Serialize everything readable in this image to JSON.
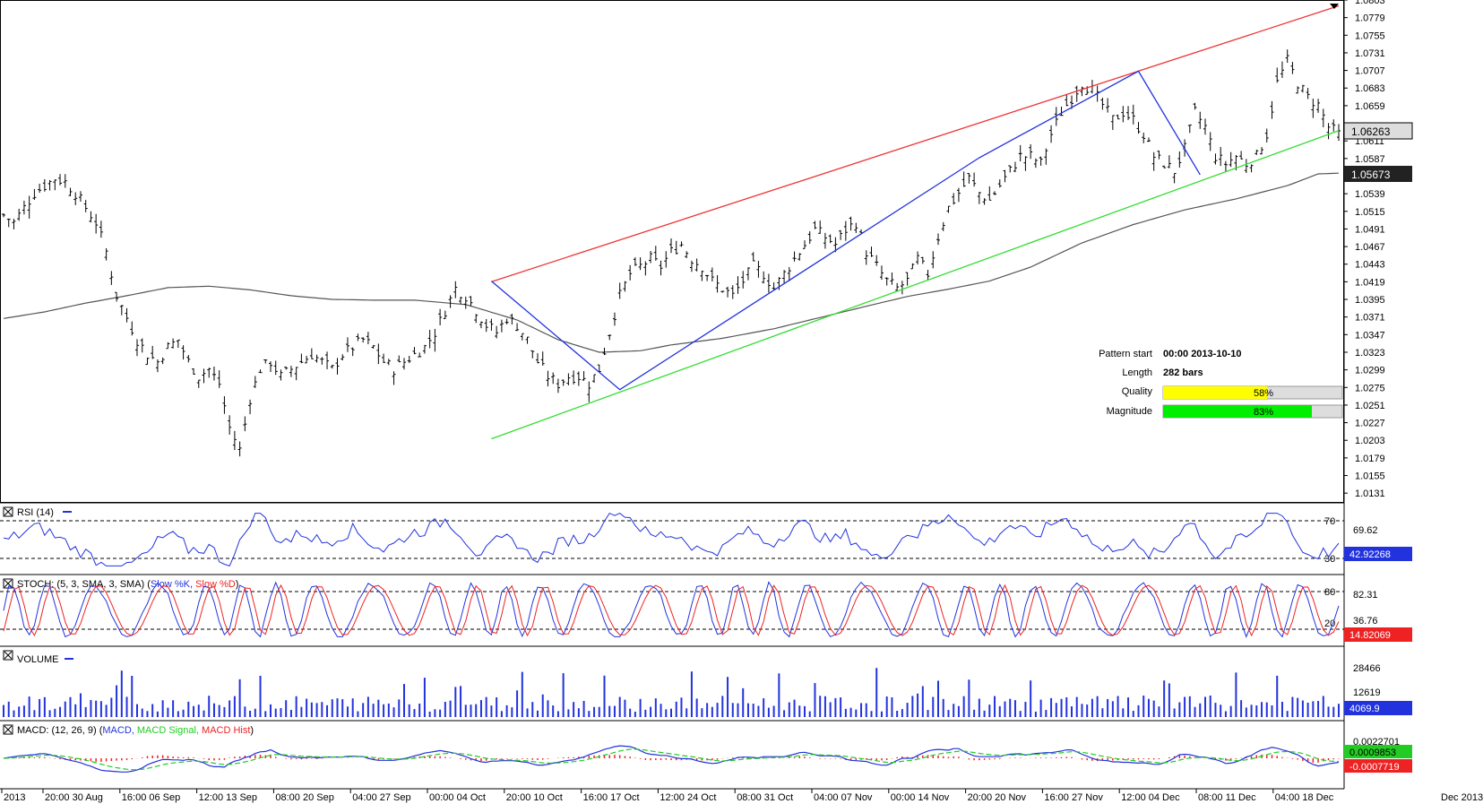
{
  "chart_data": {
    "type": "candlestick",
    "price_axis": {
      "ticks": [
        "1.0803",
        "1.0779",
        "1.0755",
        "1.0731",
        "1.0707",
        "1.0683",
        "1.0659",
        "1.0611",
        "1.0587",
        "1.0539",
        "1.0515",
        "1.0491",
        "1.0467",
        "1.0443",
        "1.0419",
        "1.0395",
        "1.0371",
        "1.0347",
        "1.0323",
        "1.0299",
        "1.0275",
        "1.0251",
        "1.0227",
        "1.0203",
        "1.0179",
        "1.0155",
        "1.0131"
      ],
      "ymin": 1.0119,
      "ymax": 1.0803,
      "current_price": "1.06263",
      "ma_price": "1.05673"
    },
    "time_axis": {
      "labels": [
        "2013",
        "20:00 30 Aug",
        "16:00 06 Sep",
        "12:00 13 Sep",
        "08:00 20 Sep",
        "04:00 27 Sep",
        "00:00 04 Oct",
        "20:00 10 Oct",
        "16:00 17 Oct",
        "12:00 24 Oct",
        "08:00 31 Oct",
        "04:00 07 Nov",
        "00:00 14 Nov",
        "20:00 20 Nov",
        "16:00 27 Nov",
        "12:00 04 Dec",
        "08:00 11 Dec",
        "04:00 18 Dec"
      ],
      "right_label": "Dec 2013"
    },
    "price_path": [
      [
        0,
        1.051
      ],
      [
        2,
        1.05
      ],
      [
        4,
        1.052
      ],
      [
        6,
        1.054
      ],
      [
        8,
        1.055
      ],
      [
        10,
        1.056
      ],
      [
        12,
        1.0555
      ],
      [
        14,
        1.054
      ],
      [
        16,
        1.052
      ],
      [
        18,
        1.05
      ],
      [
        20,
        1.046
      ],
      [
        22,
        1.04
      ],
      [
        24,
        1.037
      ],
      [
        26,
        1.034
      ],
      [
        28,
        1.032
      ],
      [
        30,
        1.031
      ],
      [
        32,
        1.033
      ],
      [
        34,
        1.034
      ],
      [
        36,
        1.031
      ],
      [
        38,
        1.029
      ],
      [
        40,
        1.03
      ],
      [
        42,
        1.028
      ],
      [
        44,
        1.022
      ],
      [
        46,
        1.019
      ],
      [
        48,
        1.026
      ],
      [
        50,
        1.03
      ],
      [
        52,
        1.031
      ],
      [
        54,
        1.029
      ],
      [
        56,
        1.03
      ],
      [
        58,
        1.031
      ],
      [
        60,
        1.032
      ],
      [
        62,
        1.031
      ],
      [
        64,
        1.03
      ],
      [
        66,
        1.032
      ],
      [
        68,
        1.033
      ],
      [
        70,
        1.034
      ],
      [
        72,
        1.033
      ],
      [
        74,
        1.031
      ],
      [
        76,
        1.03
      ],
      [
        78,
        1.031
      ],
      [
        80,
        1.032
      ],
      [
        82,
        1.033
      ],
      [
        84,
        1.035
      ],
      [
        86,
        1.038
      ],
      [
        88,
        1.041
      ],
      [
        90,
        1.04
      ],
      [
        92,
        1.038
      ],
      [
        94,
        1.036
      ],
      [
        96,
        1.035
      ],
      [
        98,
        1.037
      ],
      [
        100,
        1.036
      ],
      [
        102,
        1.034
      ],
      [
        104,
        1.031
      ],
      [
        106,
        1.029
      ],
      [
        108,
        1.028
      ],
      [
        110,
        1.029
      ],
      [
        112,
        1.029
      ],
      [
        114,
        1.028
      ],
      [
        116,
        1.03
      ],
      [
        118,
        1.035
      ],
      [
        120,
        1.04
      ],
      [
        122,
        1.043
      ],
      [
        124,
        1.044
      ],
      [
        126,
        1.045
      ],
      [
        128,
        1.044
      ],
      [
        130,
        1.046
      ],
      [
        132,
        1.047
      ],
      [
        134,
        1.045
      ],
      [
        136,
        1.044
      ],
      [
        138,
        1.042
      ],
      [
        140,
        1.041
      ],
      [
        142,
        1.04
      ],
      [
        144,
        1.042
      ],
      [
        146,
        1.044
      ],
      [
        148,
        1.043
      ],
      [
        150,
        1.041
      ],
      [
        152,
        1.043
      ],
      [
        154,
        1.045
      ],
      [
        156,
        1.047
      ],
      [
        158,
        1.049
      ],
      [
        160,
        1.048
      ],
      [
        162,
        1.047
      ],
      [
        164,
        1.049
      ],
      [
        166,
        1.05
      ],
      [
        168,
        1.046
      ],
      [
        170,
        1.044
      ],
      [
        172,
        1.042
      ],
      [
        174,
        1.041
      ],
      [
        176,
        1.042
      ],
      [
        178,
        1.045
      ],
      [
        180,
        1.043
      ],
      [
        182,
        1.048
      ],
      [
        184,
        1.052
      ],
      [
        186,
        1.054
      ],
      [
        188,
        1.056
      ],
      [
        190,
        1.054
      ],
      [
        192,
        1.053
      ],
      [
        194,
        1.055
      ],
      [
        196,
        1.057
      ],
      [
        198,
        1.059
      ],
      [
        200,
        1.059
      ],
      [
        202,
        1.058
      ],
      [
        204,
        1.062
      ],
      [
        206,
        1.065
      ],
      [
        208,
        1.067
      ],
      [
        210,
        1.069
      ],
      [
        212,
        1.068
      ],
      [
        214,
        1.066
      ],
      [
        216,
        1.064
      ],
      [
        218,
        1.065
      ],
      [
        220,
        1.064
      ],
      [
        222,
        1.062
      ],
      [
        224,
        1.059
      ],
      [
        226,
        1.058
      ],
      [
        228,
        1.057
      ],
      [
        230,
        1.06
      ],
      [
        232,
        1.065
      ],
      [
        234,
        1.063
      ],
      [
        236,
        1.059
      ],
      [
        238,
        1.058
      ],
      [
        240,
        1.059
      ],
      [
        242,
        1.058
      ],
      [
        244,
        1.059
      ],
      [
        246,
        1.062
      ],
      [
        248,
        1.069
      ],
      [
        250,
        1.072
      ],
      [
        252,
        1.069
      ],
      [
        254,
        1.067
      ],
      [
        256,
        1.066
      ],
      [
        258,
        1.063
      ],
      [
        260,
        1.062
      ]
    ],
    "sma_path": [
      [
        0,
        1.0369
      ],
      [
        8,
        1.0378
      ],
      [
        16,
        1.039
      ],
      [
        24,
        1.04
      ],
      [
        32,
        1.0411
      ],
      [
        40,
        1.0413
      ],
      [
        48,
        1.0408
      ],
      [
        56,
        1.04
      ],
      [
        64,
        1.0395
      ],
      [
        72,
        1.0394
      ],
      [
        80,
        1.0394
      ],
      [
        90,
        1.0388
      ],
      [
        100,
        1.0367
      ],
      [
        108,
        1.034
      ],
      [
        116,
        1.0323
      ],
      [
        124,
        1.0325
      ],
      [
        130,
        1.0333
      ],
      [
        140,
        1.0342
      ],
      [
        150,
        1.0355
      ],
      [
        160,
        1.0372
      ],
      [
        170,
        1.0389
      ],
      [
        176,
        1.0399
      ],
      [
        184,
        1.0409
      ],
      [
        192,
        1.042
      ],
      [
        200,
        1.0439
      ],
      [
        210,
        1.0472
      ],
      [
        220,
        1.0497
      ],
      [
        230,
        1.0517
      ],
      [
        240,
        1.0532
      ],
      [
        250,
        1.055
      ],
      [
        256,
        1.0566
      ],
      [
        260,
        1.0567
      ]
    ],
    "trend_lines": {
      "resistance": {
        "start": [
          95,
          1.0419
        ],
        "end": [
          260,
          1.0795
        ]
      },
      "support": {
        "start": [
          95,
          1.0205
        ],
        "end": [
          260,
          1.0625
        ]
      }
    },
    "pattern_path": [
      [
        95,
        1.042
      ],
      [
        120,
        1.0272
      ],
      [
        190,
        1.0588
      ],
      [
        221,
        1.0706
      ],
      [
        233,
        1.0565
      ],
      [
        260,
        1.0625
      ]
    ],
    "n_bars": 260,
    "pattern_info": {
      "start_label": "Pattern start",
      "start_value": "00:00 2013-10-10",
      "length_label": "Length",
      "length_value": "282 bars",
      "quality_label": "Quality",
      "quality_value": "58%",
      "quality_fraction": 0.58,
      "magnitude_label": "Magnitude",
      "magnitude_value": "83%",
      "magnitude_fraction": 0.83
    },
    "colors": {
      "resistance": "#ee3333",
      "support": "#33dd33",
      "pattern": "#2233dd",
      "sma": "#555555",
      "quality_fill": "#ffff00",
      "magnitude_fill": "#00ee00"
    }
  },
  "rsi": {
    "label": "RSI (14)",
    "upper": "70",
    "lower": "30",
    "right_value": "69.62",
    "current": "42.92268"
  },
  "stoch": {
    "label_prefix": "STOCH: (5, 3, SMA, 3, SMA)",
    "k_label": "Slow %K,",
    "d_label": "Slow %D",
    "upper": "80",
    "lower": "20",
    "right_value_1": "82.31",
    "right_value_2": "36.76",
    "current": "14.82069"
  },
  "volume": {
    "label": "VOLUME",
    "tick_1": "28466",
    "tick_2": "12619",
    "current": "4069.9"
  },
  "macd": {
    "label_prefix": "MACD: (12, 26, 9)",
    "macd_label": "MACD,",
    "signal_label": "MACD Signal,",
    "hist_label": "MACD Hist",
    "tick": "0.0022701",
    "macd_value": "0.0009853",
    "signal_value": "-0.0007719"
  }
}
